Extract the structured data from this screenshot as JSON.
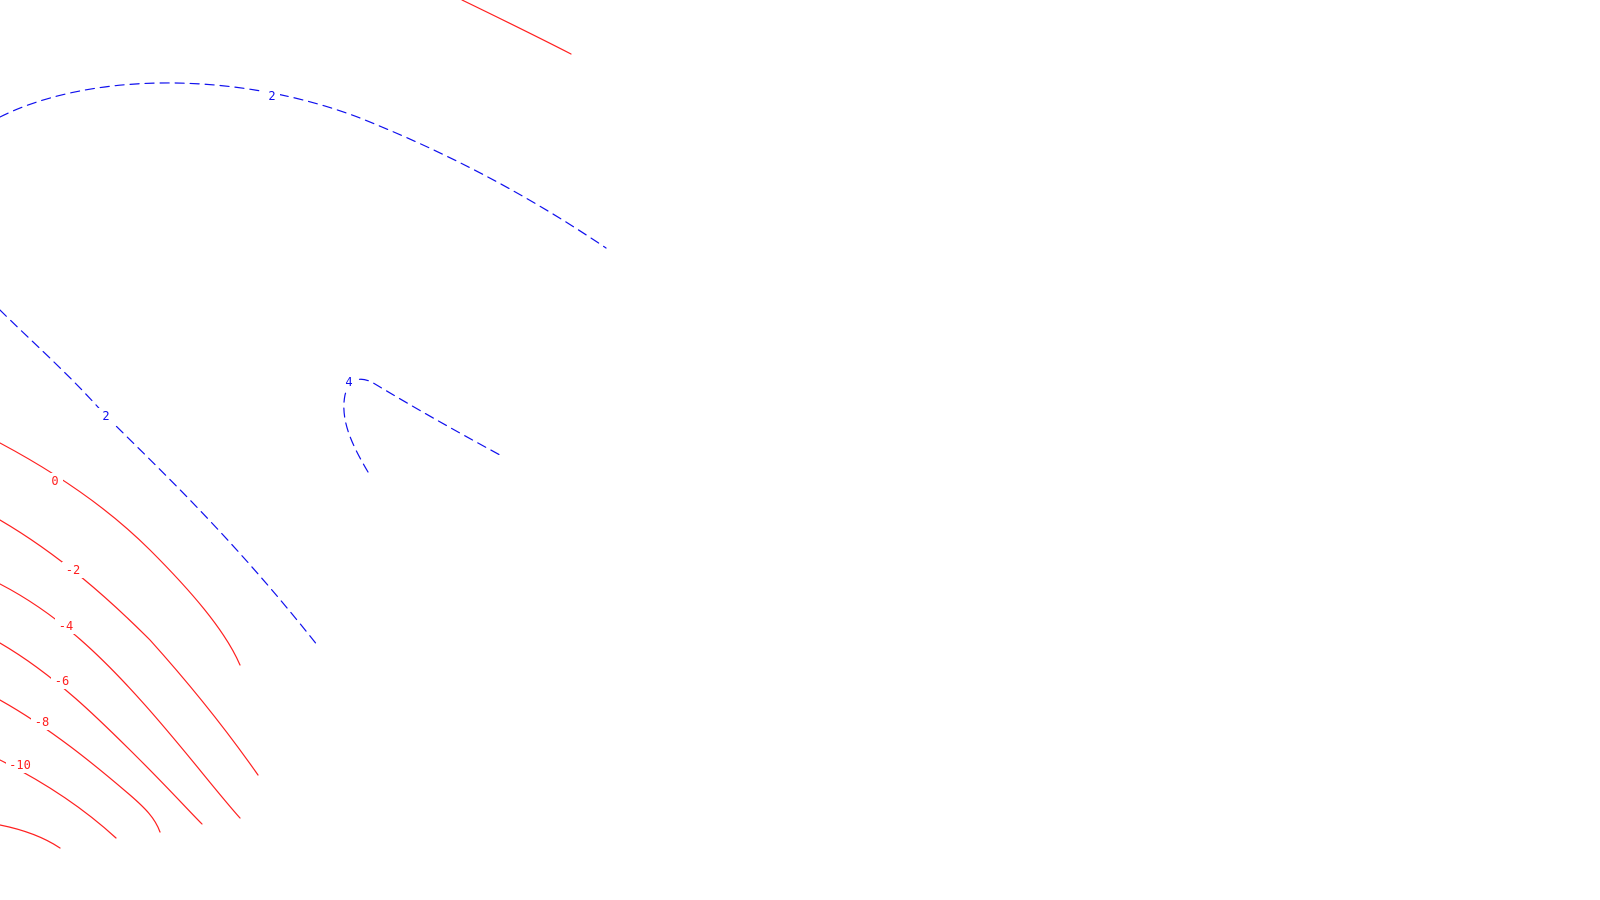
{
  "map": {
    "colors": {
      "negative_contour": "#ff2020",
      "positive_contour": "#1010ee",
      "background": "#ffffff"
    },
    "contours": [
      {
        "id": "top-red",
        "level": "",
        "style": "solid"
      },
      {
        "id": "upper-blue-2",
        "level": "2",
        "style": "dashed"
      },
      {
        "id": "left-blue-2",
        "level": "2",
        "style": "dashed"
      },
      {
        "id": "blue-4",
        "level": "4",
        "style": "dashed"
      },
      {
        "id": "red-0",
        "level": "0",
        "style": "solid"
      },
      {
        "id": "red-neg2",
        "level": "-2",
        "style": "solid"
      },
      {
        "id": "red-neg4",
        "level": "-4",
        "style": "solid"
      },
      {
        "id": "red-neg6",
        "level": "-6",
        "style": "solid"
      },
      {
        "id": "red-neg8",
        "level": "-8",
        "style": "solid"
      },
      {
        "id": "red-neg10",
        "level": "-10",
        "style": "solid"
      },
      {
        "id": "red-bottom",
        "level": "",
        "style": "solid"
      }
    ]
  }
}
